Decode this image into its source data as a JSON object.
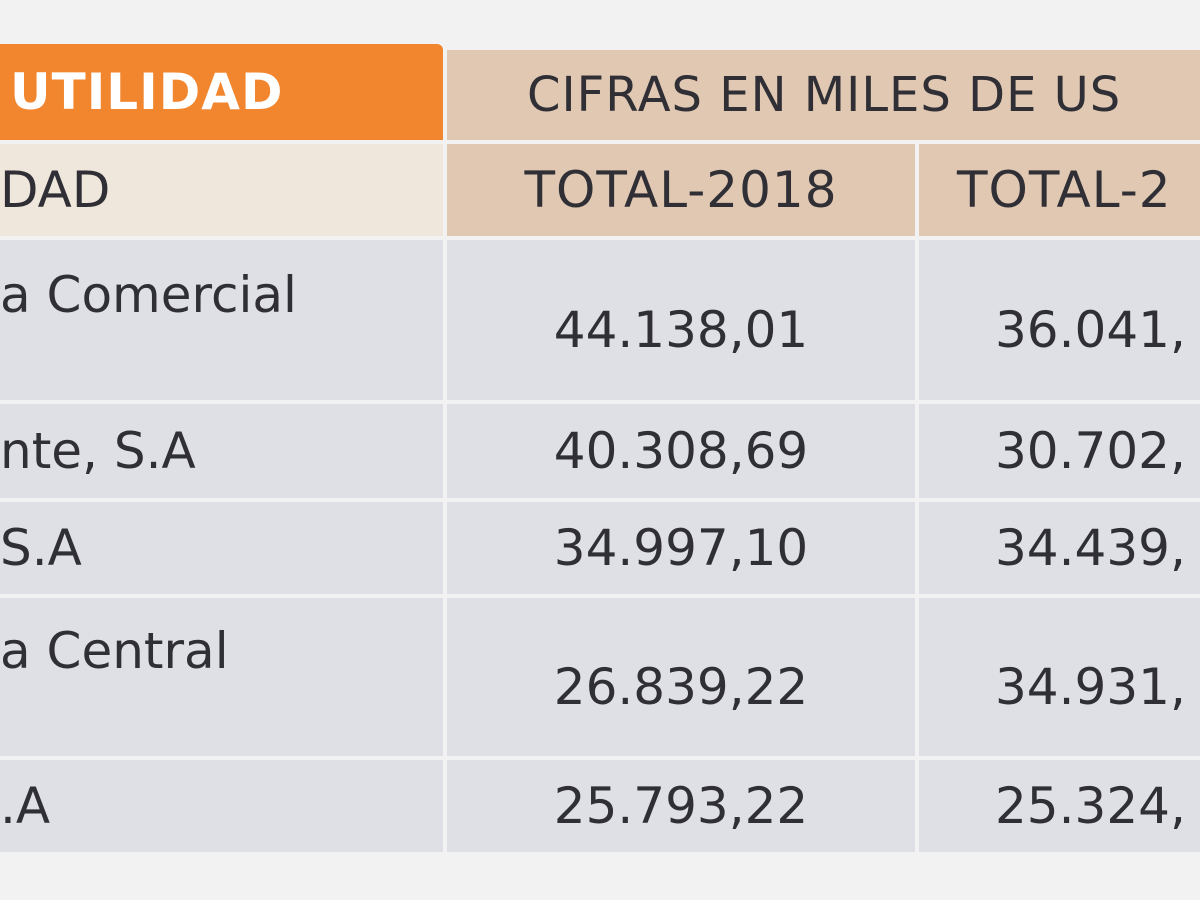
{
  "table": {
    "title": "UTILIDAD",
    "units_label": "CIFRAS EN MILES DE US",
    "entity_header": "DAD",
    "columns": [
      "TOTAL-2018",
      "TOTAL-2"
    ],
    "rows": [
      {
        "entity": "a Comercial",
        "v2018": "44.138,01",
        "v2019": "36.041,"
      },
      {
        "entity": "nte, S.A",
        "v2018": "40.308,69",
        "v2019": "30.702,"
      },
      {
        "entity": "S.A",
        "v2018": "34.997,10",
        "v2019": "34.439,"
      },
      {
        "entity": "a Central",
        "v2018": "26.839,22",
        "v2019": "34.931,"
      },
      {
        "entity": ".A",
        "v2018": "25.793,22",
        "v2019": "25.324,"
      }
    ]
  }
}
